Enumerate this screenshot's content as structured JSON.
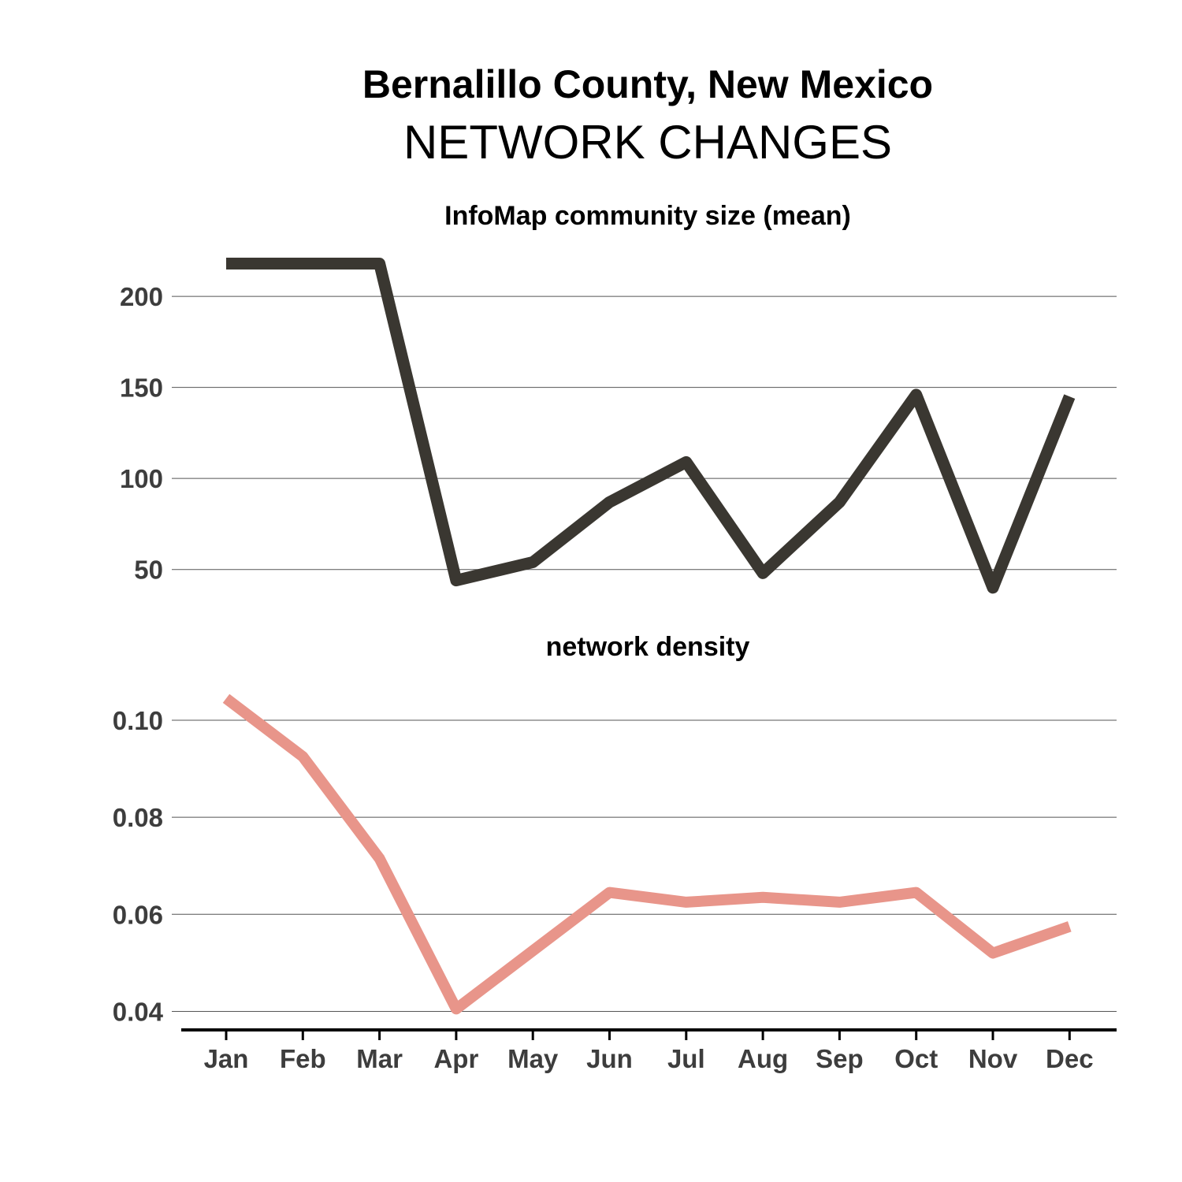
{
  "title": "Bernalillo County, New Mexico",
  "subtitle": "NETWORK CHANGES",
  "chart_data": [
    {
      "type": "line",
      "title": "InfoMap community size (mean)",
      "x": [
        "Jan",
        "Feb",
        "Mar",
        "Apr",
        "May",
        "Jun",
        "Jul",
        "Aug",
        "Sep",
        "Oct",
        "Nov",
        "Dec"
      ],
      "y": [
        218,
        218,
        218,
        44,
        54,
        87,
        109,
        48,
        87,
        146,
        40,
        145
      ],
      "yticks": [
        50,
        100,
        150,
        200
      ],
      "ylim": [
        33,
        226
      ],
      "color": "#3a3731",
      "grid": true
    },
    {
      "type": "line",
      "title": "network density",
      "x": [
        "Jan",
        "Feb",
        "Mar",
        "Apr",
        "May",
        "Jun",
        "Jul",
        "Aug",
        "Sep",
        "Oct",
        "Nov",
        "Dec"
      ],
      "y": [
        0.1045,
        0.0925,
        0.0715,
        0.0405,
        0.0525,
        0.0645,
        0.0625,
        0.0635,
        0.0625,
        0.0645,
        0.052,
        0.0575
      ],
      "yticks": [
        0.04,
        0.06,
        0.08,
        0.1
      ],
      "yticklabels": [
        "0.04",
        "0.06",
        "0.08",
        "0.10"
      ],
      "ylim": [
        0.0378,
        0.1078
      ],
      "color": "#e8958a",
      "grid": true
    }
  ]
}
